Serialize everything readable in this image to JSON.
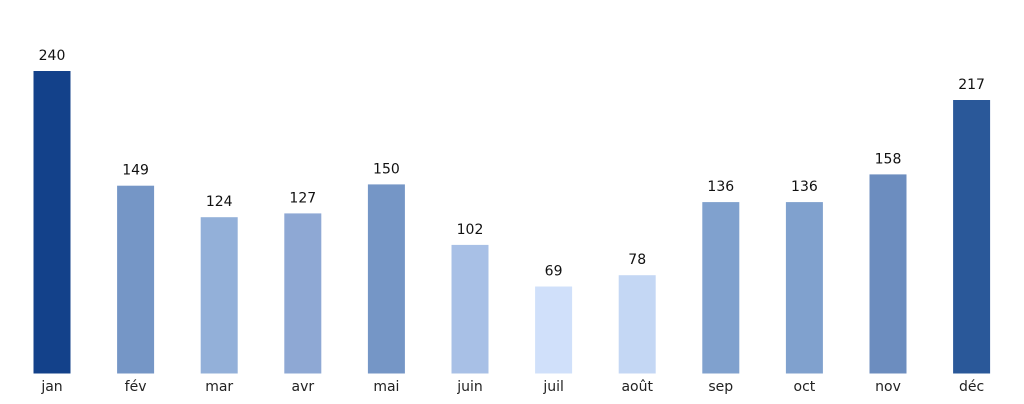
{
  "chart_data": {
    "type": "bar",
    "categories": [
      "jan",
      "fév",
      "mar",
      "avr",
      "mai",
      "juin",
      "juil",
      "août",
      "sep",
      "oct",
      "nov",
      "déc"
    ],
    "values": [
      240,
      149,
      124,
      127,
      150,
      102,
      69,
      78,
      136,
      136,
      158,
      217
    ],
    "colors": [
      "#13418a",
      "#7596c6",
      "#93b0d9",
      "#8ea8d4",
      "#7596c6",
      "#a8c0e6",
      "#d0e0fa",
      "#c4d7f4",
      "#80a1ce",
      "#80a1ce",
      "#6c8dbf",
      "#2a5899"
    ],
    "title": "",
    "xlabel": "",
    "ylabel": "",
    "ylim": [
      0,
      270
    ],
    "grid": false,
    "legend": "none"
  }
}
